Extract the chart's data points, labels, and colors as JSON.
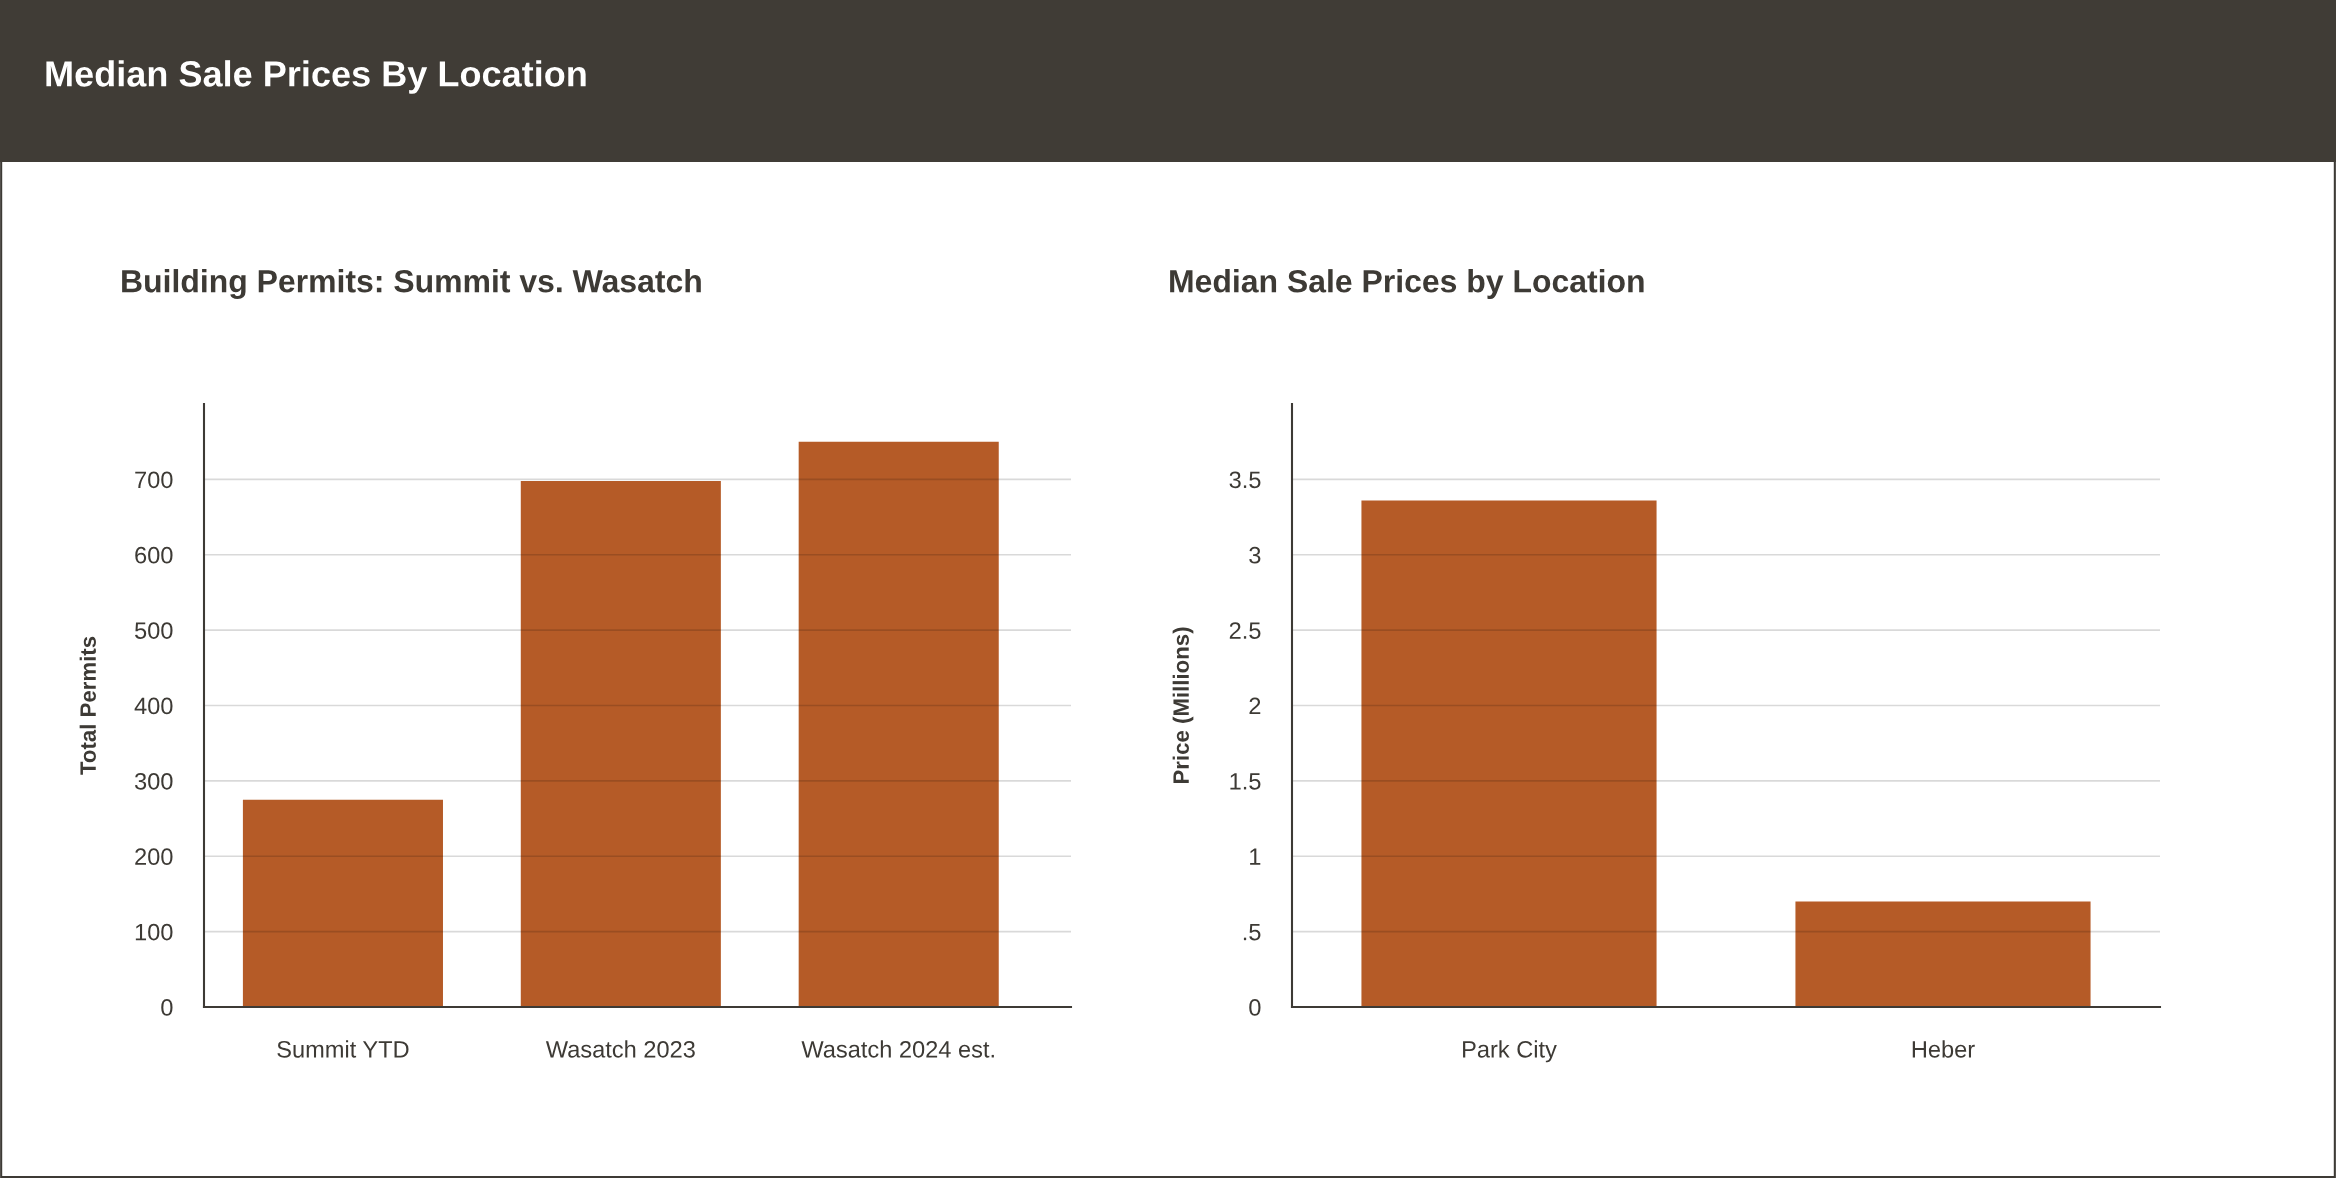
{
  "chart_data": [
    {
      "type": "other",
      "title": "Median Sale Prices By Location"
    },
    {
      "type": "bar",
      "title": "Building Permits: Summit vs. Wasatch",
      "ylabel": "Total Permits",
      "categories": [
        "Summit YTD",
        "Wasatch 2023",
        "Wasatch 2024 est."
      ],
      "values": [
        275,
        698,
        750
      ],
      "color": "#b55b27",
      "ylim": [
        0,
        800
      ],
      "yticks": [
        0,
        100,
        200,
        300,
        400,
        500,
        600,
        700
      ],
      "grid": "y"
    },
    {
      "type": "bar",
      "title": "Median Sale Prices by Location",
      "ylabel": "Price (Millions)",
      "categories": [
        "Park City",
        "Heber"
      ],
      "values": [
        3.36,
        0.7
      ],
      "color": "#b55b27",
      "ylim": [
        0,
        4
      ],
      "yticks": [
        0,
        {
          "value": 0.5,
          "label": ".5"
        },
        1,
        1.5,
        2,
        2.5,
        3,
        3.5
      ],
      "grid": "y"
    }
  ]
}
